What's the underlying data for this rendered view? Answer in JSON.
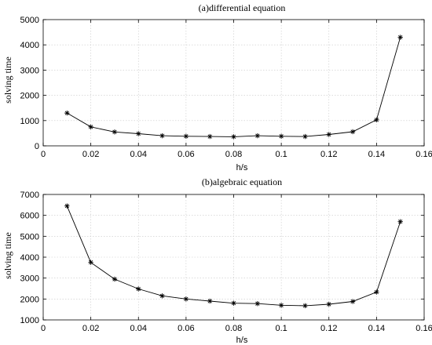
{
  "chart_data": [
    {
      "type": "line",
      "title": "(a)differential equation",
      "xlabel": "h/s",
      "ylabel": "solving time",
      "xlim": [
        0,
        0.16
      ],
      "ylim": [
        0,
        5000
      ],
      "xticks": [
        "0",
        "0.02",
        "0.04",
        "0.06",
        "0.08",
        "0.1",
        "0.12",
        "0.14",
        "0.16"
      ],
      "yticks": [
        "0",
        "1000",
        "2000",
        "3000",
        "4000",
        "5000"
      ],
      "grid": true,
      "marker": "asterisk",
      "series": [
        {
          "x": [
            0.01,
            0.02,
            0.03,
            0.04,
            0.05,
            0.06,
            0.07,
            0.08,
            0.09,
            0.1,
            0.11,
            0.12,
            0.13,
            0.14,
            0.15
          ],
          "values": [
            1300,
            750,
            550,
            480,
            400,
            380,
            370,
            360,
            400,
            380,
            370,
            450,
            560,
            1030,
            4300
          ]
        }
      ]
    },
    {
      "type": "line",
      "title": "(b)algebraic equation",
      "xlabel": "h/s",
      "ylabel": "solving time",
      "xlim": [
        0,
        0.16
      ],
      "ylim": [
        1000,
        7000
      ],
      "xticks": [
        "0",
        "0.02",
        "0.04",
        "0.06",
        "0.08",
        "0.1",
        "0.12",
        "0.14",
        "0.16"
      ],
      "yticks": [
        "1000",
        "2000",
        "3000",
        "4000",
        "5000",
        "6000",
        "7000"
      ],
      "grid": true,
      "marker": "asterisk",
      "series": [
        {
          "x": [
            0.01,
            0.02,
            0.03,
            0.04,
            0.05,
            0.06,
            0.07,
            0.08,
            0.09,
            0.1,
            0.11,
            0.12,
            0.13,
            0.14,
            0.15
          ],
          "values": [
            6450,
            3750,
            2950,
            2480,
            2150,
            2000,
            1900,
            1800,
            1780,
            1700,
            1680,
            1750,
            1880,
            2330,
            5700
          ]
        }
      ]
    }
  ]
}
